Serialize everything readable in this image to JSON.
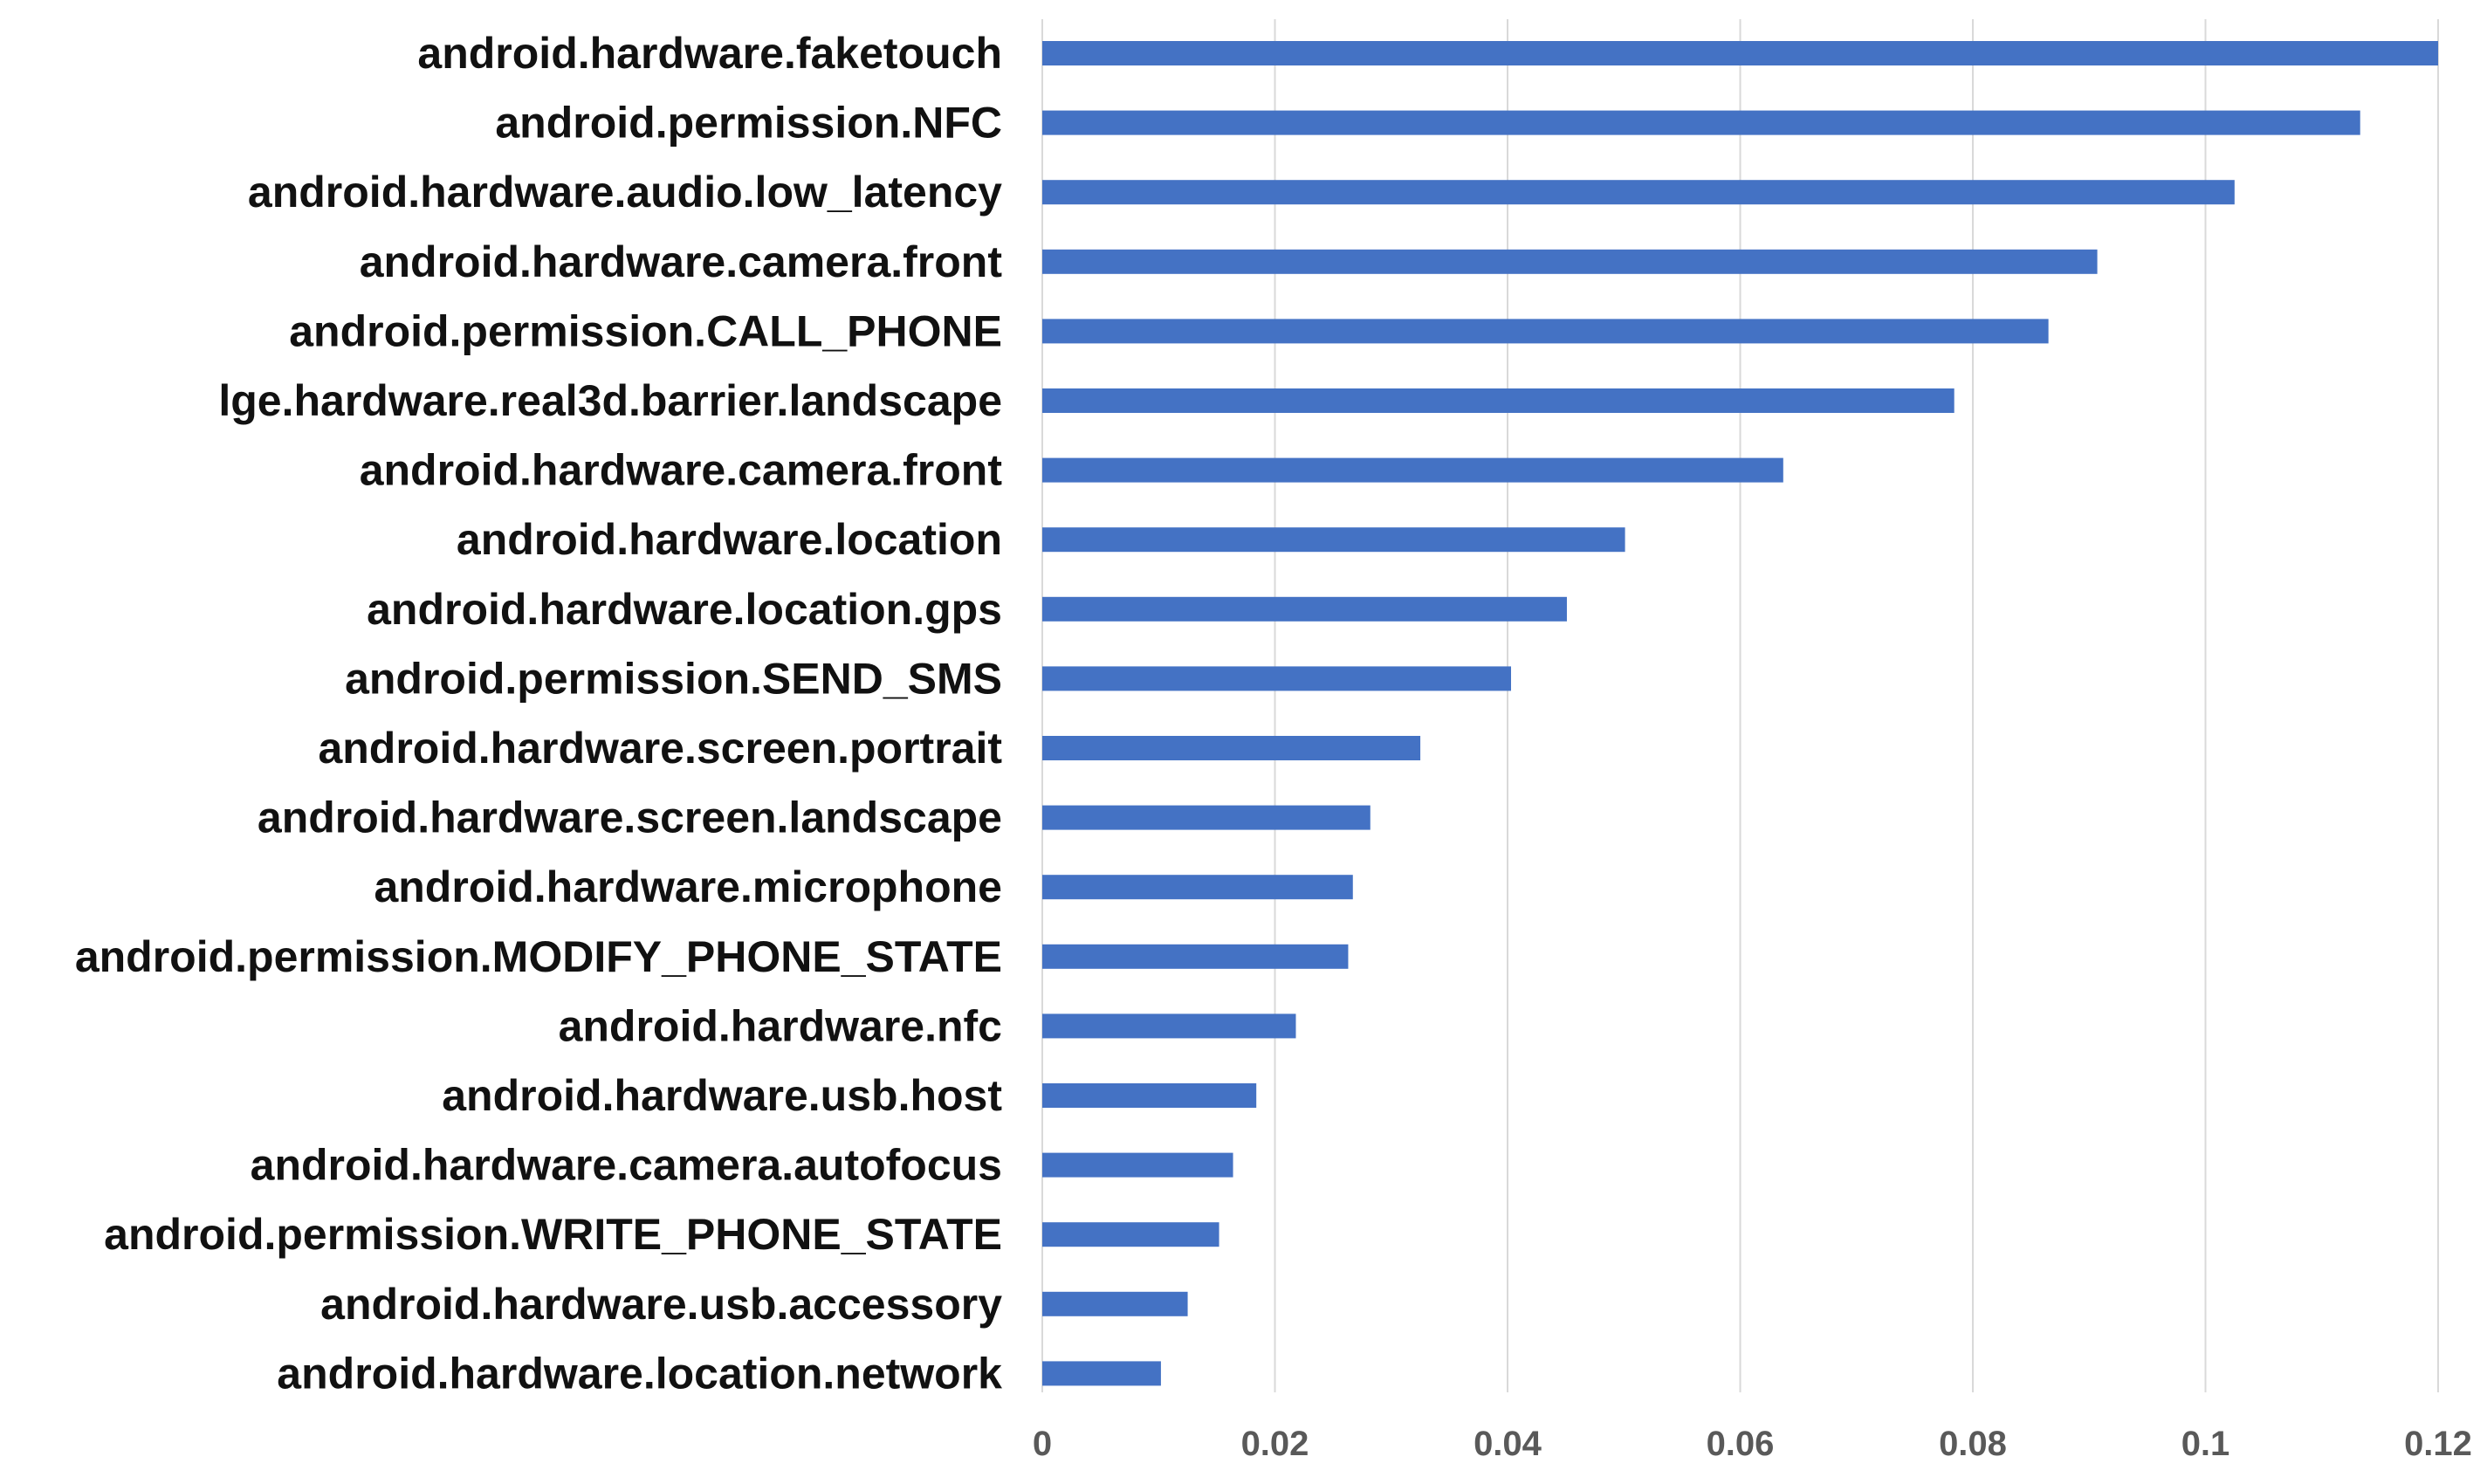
{
  "colors": {
    "bar": "#4472c4",
    "grid": "#d9d9d9",
    "category_text": "#111111",
    "tick_text": "#595959",
    "background": "#ffffff"
  },
  "chart_data": {
    "type": "bar",
    "orientation": "horizontal",
    "title": "",
    "xlabel": "",
    "ylabel": "",
    "grid": "vertical gridlines on",
    "legend": "none",
    "xlim": [
      0,
      0.12
    ],
    "x_ticks": [
      "0",
      "0.02",
      "0.04",
      "0.06",
      "0.08",
      "0.1",
      "0.12"
    ],
    "categories": [
      "android.hardware.faketouch",
      "android.permission.NFC",
      "android.hardware.audio.low_latency",
      "android.hardware.camera.front",
      "android.permission.CALL_PHONE",
      "lge.hardware.real3d.barrier.landscape",
      "android.hardware.camera.front",
      "android.hardware.location",
      "android.hardware.location.gps",
      "android.permission.SEND_SMS",
      "android.hardware.screen.portrait",
      "android.hardware.screen.landscape",
      "android.hardware.microphone",
      "android.permission.MODIFY_PHONE_STATE",
      "android.hardware.nfc",
      "android.hardware.usb.host",
      "android.hardware.camera.autofocus",
      "android.permission.WRITE_PHONE_STATE",
      "android.hardware.usb.accessory",
      "android.hardware.location.network"
    ],
    "values": [
      0.12,
      0.1133,
      0.1025,
      0.0907,
      0.0865,
      0.0784,
      0.0637,
      0.0501,
      0.0451,
      0.0403,
      0.0325,
      0.0282,
      0.0267,
      0.0263,
      0.0218,
      0.0184,
      0.0164,
      0.0152,
      0.0125,
      0.0102
    ]
  }
}
